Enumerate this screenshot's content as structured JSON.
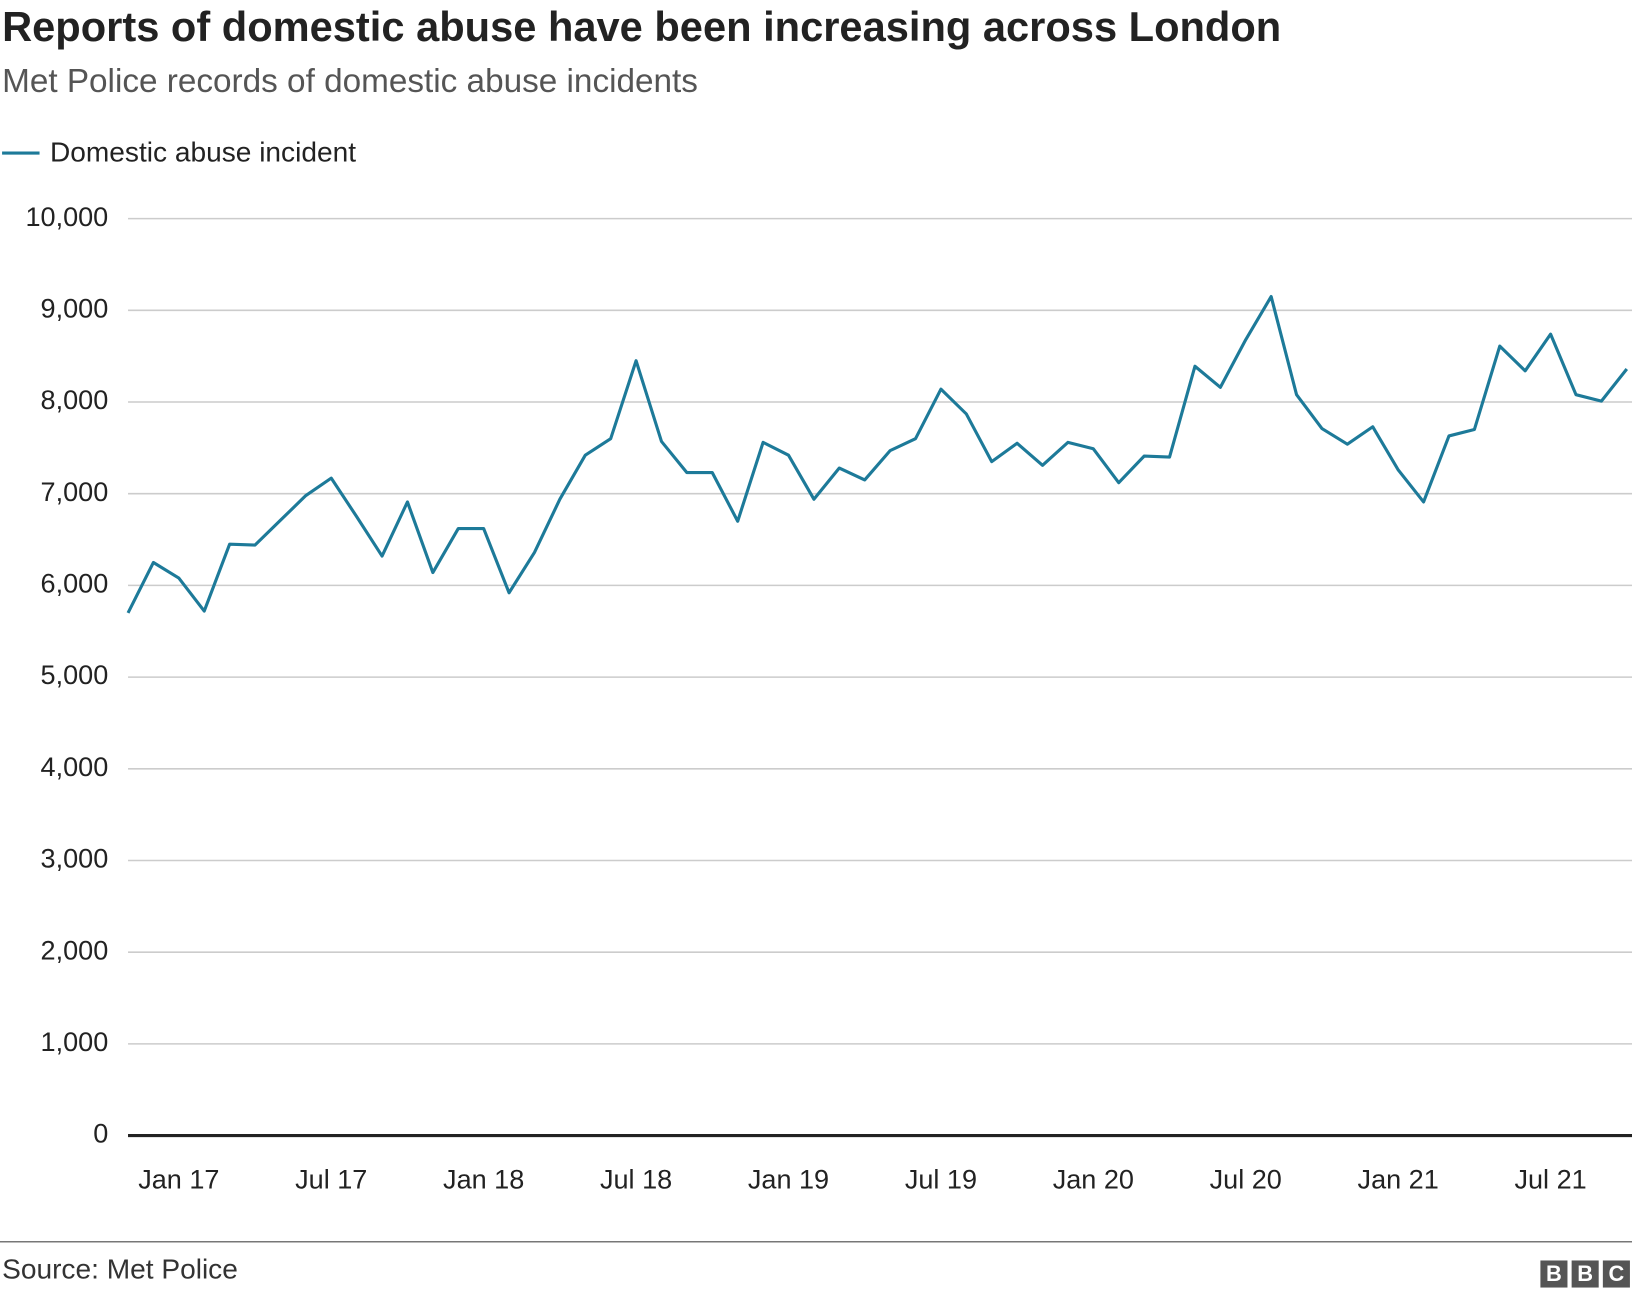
{
  "chart_data": {
    "type": "line",
    "title": "Reports of domestic abuse have been increasing across London",
    "subtitle": "Met Police records of domestic abuse incidents",
    "source": "Source: Met Police",
    "logo": [
      "B",
      "B",
      "C"
    ],
    "categories": [
      null,
      null,
      "Jan 17",
      null,
      null,
      null,
      null,
      null,
      "Jul 17",
      null,
      null,
      null,
      null,
      null,
      "Jan 18",
      null,
      null,
      null,
      null,
      null,
      "Jul 18",
      null,
      null,
      null,
      null,
      null,
      "Jan 19",
      null,
      null,
      null,
      null,
      null,
      "Jul 19",
      null,
      null,
      null,
      null,
      null,
      "Jan 20",
      null,
      null,
      null,
      null,
      null,
      "Jul 20",
      null,
      null,
      null,
      null,
      null,
      "Jan 21",
      null,
      null,
      null,
      null,
      null,
      "Jul 21",
      null,
      null,
      null
    ],
    "series": [
      {
        "name": "Domestic abuse incident",
        "color": "#1d7a99",
        "values": [
          5700,
          6250,
          6080,
          5720,
          6450,
          6440,
          6710,
          6980,
          7170,
          6750,
          6320,
          6910,
          6140,
          6620,
          6620,
          5920,
          6360,
          6940,
          7420,
          7600,
          8450,
          7570,
          7230,
          7230,
          6700,
          7560,
          7420,
          6940,
          7280,
          7150,
          7470,
          7600,
          8140,
          7870,
          7350,
          7550,
          7310,
          7560,
          7490,
          7120,
          7410,
          7400,
          8390,
          8160,
          8680,
          9150,
          8080,
          7710,
          7540,
          7730,
          7260,
          6910,
          7630,
          7700,
          8610,
          8340,
          8740,
          8080,
          8010,
          8360
        ]
      }
    ],
    "ylim": [
      0,
      10000
    ],
    "yticks": [
      0,
      {
        "value": 1000,
        "label": "1,000"
      },
      {
        "value": 2000,
        "label": "2,000"
      },
      {
        "value": 3000,
        "label": "3,000"
      },
      {
        "value": 4000,
        "label": "4,000"
      },
      {
        "value": 5000,
        "label": "5,000"
      },
      {
        "value": 6000,
        "label": "6,000"
      },
      {
        "value": 7000,
        "label": "7,000"
      },
      {
        "value": 8000,
        "label": "8,000"
      },
      {
        "value": 9000,
        "label": "9,000"
      },
      {
        "value": 10000,
        "label": "10,000"
      }
    ],
    "grid": true
  }
}
